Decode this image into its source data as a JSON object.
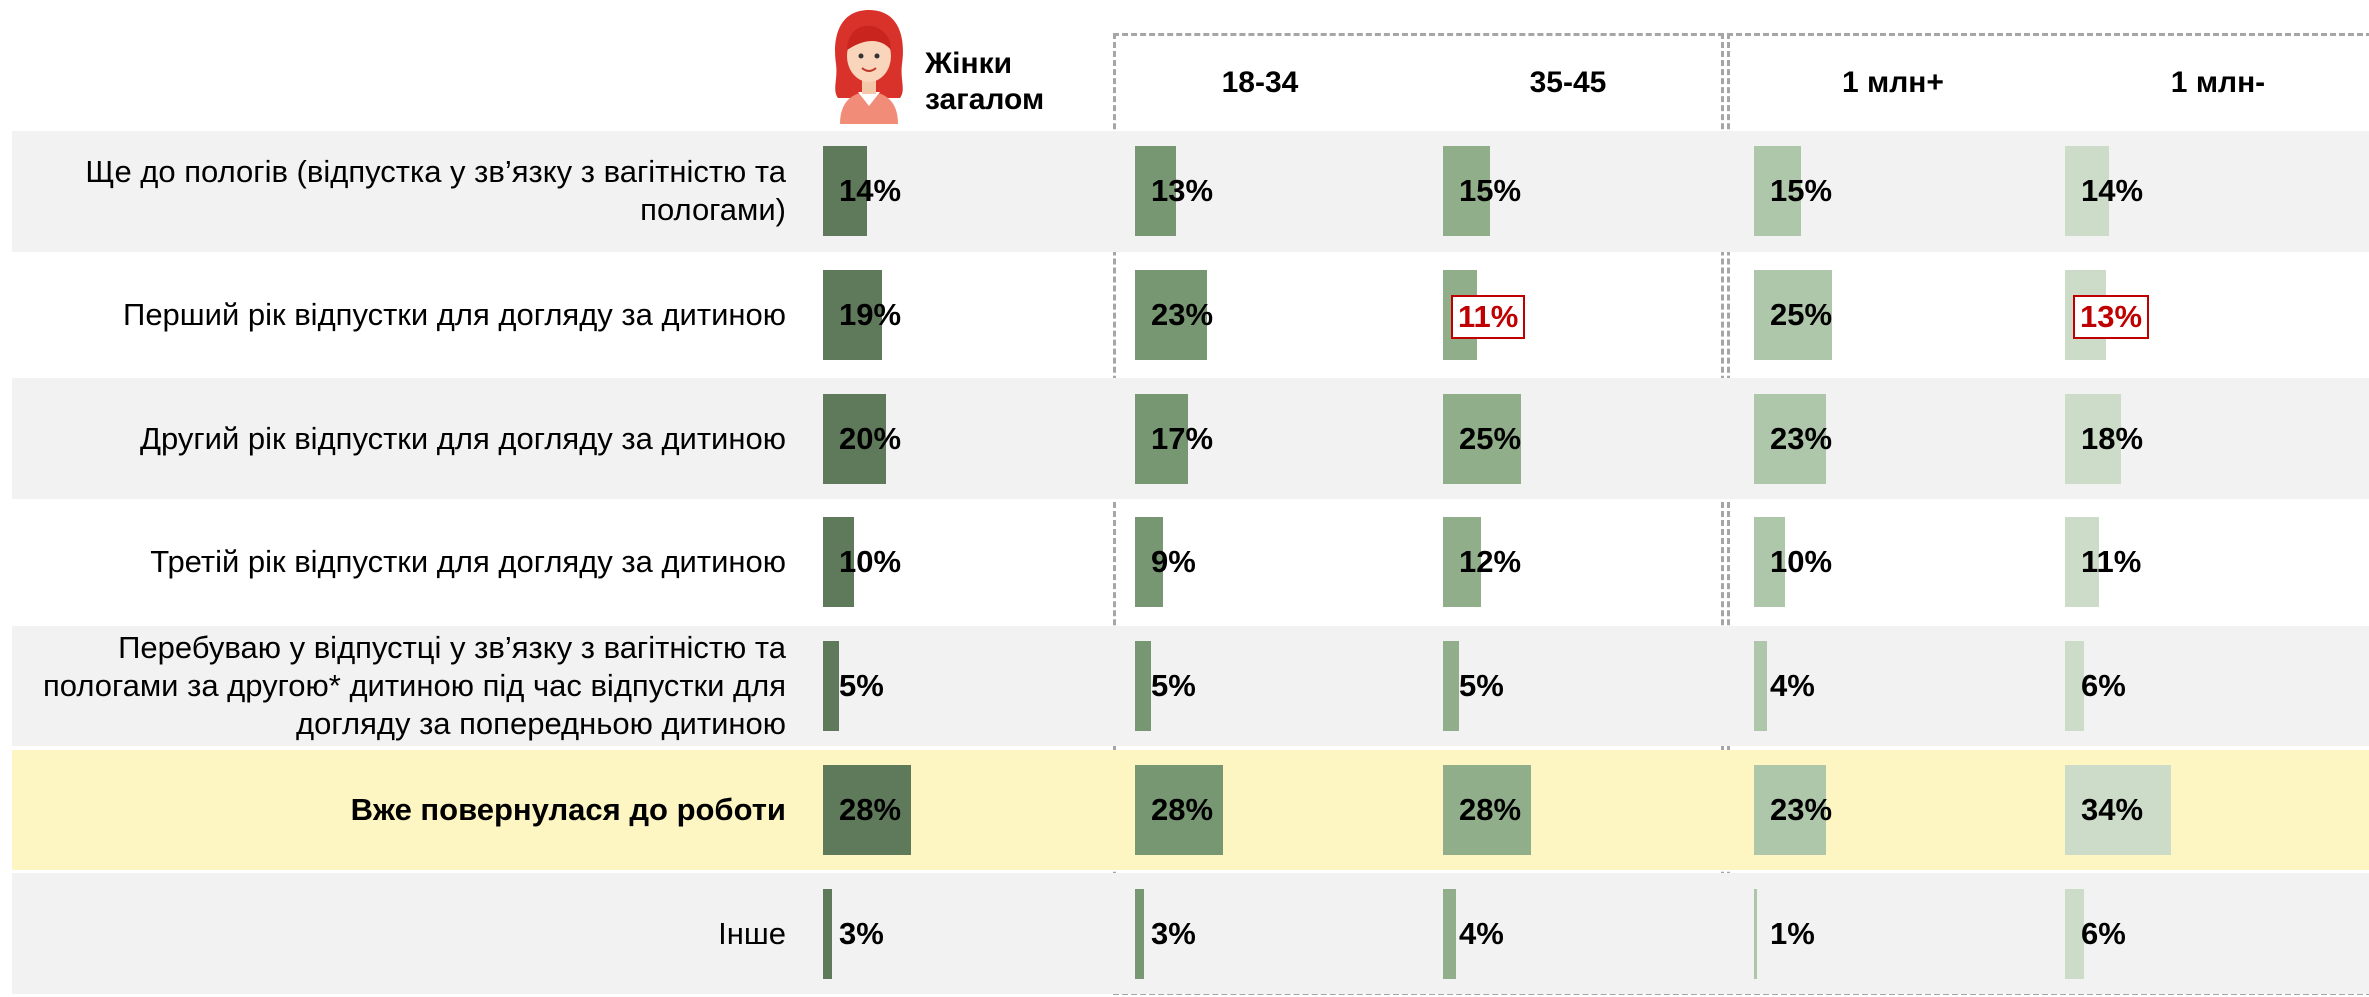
{
  "chart_data": {
    "type": "bar",
    "categories": [
      "Ще до пологів (відпустка у зв’язку з вагітністю та пологами)",
      "Перший рік відпустки для догляду за дитиною",
      "Другий рік відпустки для догляду за дитиною",
      "Третій рік відпустки для догляду за дитиною",
      "Перебуваю у відпустці у зв’язку з вагітністю та пологами за другою* дитиною під час відпустки для догляду за попередньою дитиною",
      "Вже повернулася до роботи",
      "Інше"
    ],
    "emphasized_categories": [
      "Вже повернулася до роботи"
    ],
    "emphasis_color": "#fdf5c2",
    "highlight_color": "#c00000",
    "series": [
      {
        "name": "Жінки загалом",
        "color": "#5f7a5a",
        "values": [
          14,
          19,
          20,
          10,
          5,
          28,
          3
        ],
        "value_labels": [
          "14%",
          "19%",
          "20%",
          "10%",
          "5%",
          "28%",
          "3%"
        ],
        "highlighted": [
          false,
          false,
          false,
          false,
          false,
          false,
          false
        ]
      },
      {
        "name": "18-34",
        "color": "#779672",
        "values": [
          13,
          23,
          17,
          9,
          5,
          28,
          3
        ],
        "value_labels": [
          "13%",
          "23%",
          "17%",
          "9%",
          "5%",
          "28%",
          "3%"
        ],
        "highlighted": [
          false,
          false,
          false,
          false,
          false,
          false,
          false
        ]
      },
      {
        "name": "35-45",
        "color": "#8fae89",
        "values": [
          15,
          11,
          25,
          12,
          5,
          28,
          4
        ],
        "value_labels": [
          "15%",
          "11%",
          "25%",
          "12%",
          "5%",
          "28%",
          "4%"
        ],
        "highlighted": [
          false,
          true,
          false,
          false,
          false,
          false,
          false
        ]
      },
      {
        "name": "1 млн+",
        "color": "#aec6a9",
        "values": [
          15,
          25,
          23,
          10,
          4,
          23,
          1
        ],
        "value_labels": [
          "15%",
          "25%",
          "23%",
          "10%",
          "4%",
          "23%",
          "1%"
        ],
        "highlighted": [
          false,
          false,
          false,
          false,
          false,
          false,
          false
        ]
      },
      {
        "name": "1 млн-",
        "color": "#cddbc9",
        "values": [
          14,
          13,
          18,
          11,
          6,
          34,
          6
        ],
        "value_labels": [
          "14%",
          "13%",
          "18%",
          "11%",
          "6%",
          "34%",
          "6%"
        ],
        "highlighted": [
          false,
          true,
          false,
          false,
          false,
          false,
          false
        ]
      }
    ]
  }
}
